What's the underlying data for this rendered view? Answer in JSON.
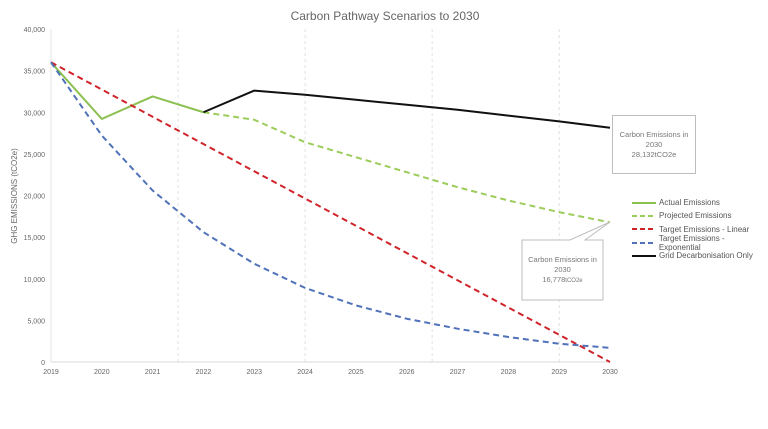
{
  "chart_data": {
    "type": "line",
    "title": "Carbon Pathway Scenarios to 2030",
    "xlabel": "",
    "ylabel": "GHG EMISSIONS (tCO2e)",
    "x": [
      2019,
      2020,
      2021,
      2022,
      2023,
      2024,
      2025,
      2026,
      2027,
      2028,
      2029,
      2030
    ],
    "xticks": [
      "2019",
      "2020",
      "2021",
      "2022",
      "2023",
      "2024",
      "2025",
      "2026",
      "2027",
      "2028",
      "2029",
      "2030"
    ],
    "ylim": [
      0,
      40000
    ],
    "yticks": [
      "0",
      "5,000",
      "10,000",
      "15,000",
      "20,000",
      "25,000",
      "30,000",
      "35,000",
      "40,000"
    ],
    "ytick_values": [
      0,
      5000,
      10000,
      15000,
      20000,
      25000,
      30000,
      35000,
      40000
    ],
    "vertical_gridlines_at": [
      2021.5,
      2024,
      2026.5,
      2029
    ],
    "legend_position": "right",
    "series": [
      {
        "name": "Actual Emissions",
        "color": "#8cc152",
        "dash": false,
        "x": [
          2019,
          2020,
          2021,
          2022
        ],
        "values": [
          36000,
          29200,
          31900,
          30000
        ]
      },
      {
        "name": "Projected Emissions",
        "color": "#9ccc5a",
        "dash": true,
        "x": [
          2022,
          2023,
          2024,
          2025,
          2026,
          2027,
          2028,
          2029,
          2030
        ],
        "values": [
          30000,
          29100,
          26400,
          24600,
          22800,
          21000,
          19400,
          18000,
          16778
        ]
      },
      {
        "name": "Target Emissions - Linear",
        "color": "#d0232a",
        "dash": true,
        "x": [
          2019,
          2020,
          2021,
          2022,
          2023,
          2024,
          2025,
          2026,
          2027,
          2028,
          2029,
          2030
        ],
        "values": [
          36000,
          32727,
          29455,
          26182,
          22909,
          19636,
          16364,
          13091,
          9818,
          6545,
          3273,
          0
        ]
      },
      {
        "name": "Target Emissions - Exponential",
        "color": "#4f72b8",
        "dash": true,
        "x": [
          2019,
          2020,
          2021,
          2022,
          2023,
          2024,
          2025,
          2026,
          2027,
          2028,
          2029,
          2030
        ],
        "values": [
          36000,
          27200,
          20600,
          15600,
          11800,
          8900,
          6800,
          5200,
          4000,
          3000,
          2200,
          1700
        ]
      },
      {
        "name": "Grid Decarbonisation Only",
        "color": "#111111",
        "dash": false,
        "x": [
          2022,
          2023,
          2024,
          2025,
          2026,
          2027,
          2028,
          2029,
          2030
        ],
        "values": [
          30000,
          32600,
          32100,
          31500,
          30900,
          30300,
          29600,
          28900,
          28132
        ]
      }
    ],
    "annotations": [
      {
        "line1": "Carbon Emissions in",
        "line2": "2030",
        "value": "28,132",
        "unit": "tCO2e"
      },
      {
        "line1": "Carbon Emissions in",
        "line2": "2030",
        "value": "16,778",
        "unit": "tCO2e"
      }
    ]
  }
}
